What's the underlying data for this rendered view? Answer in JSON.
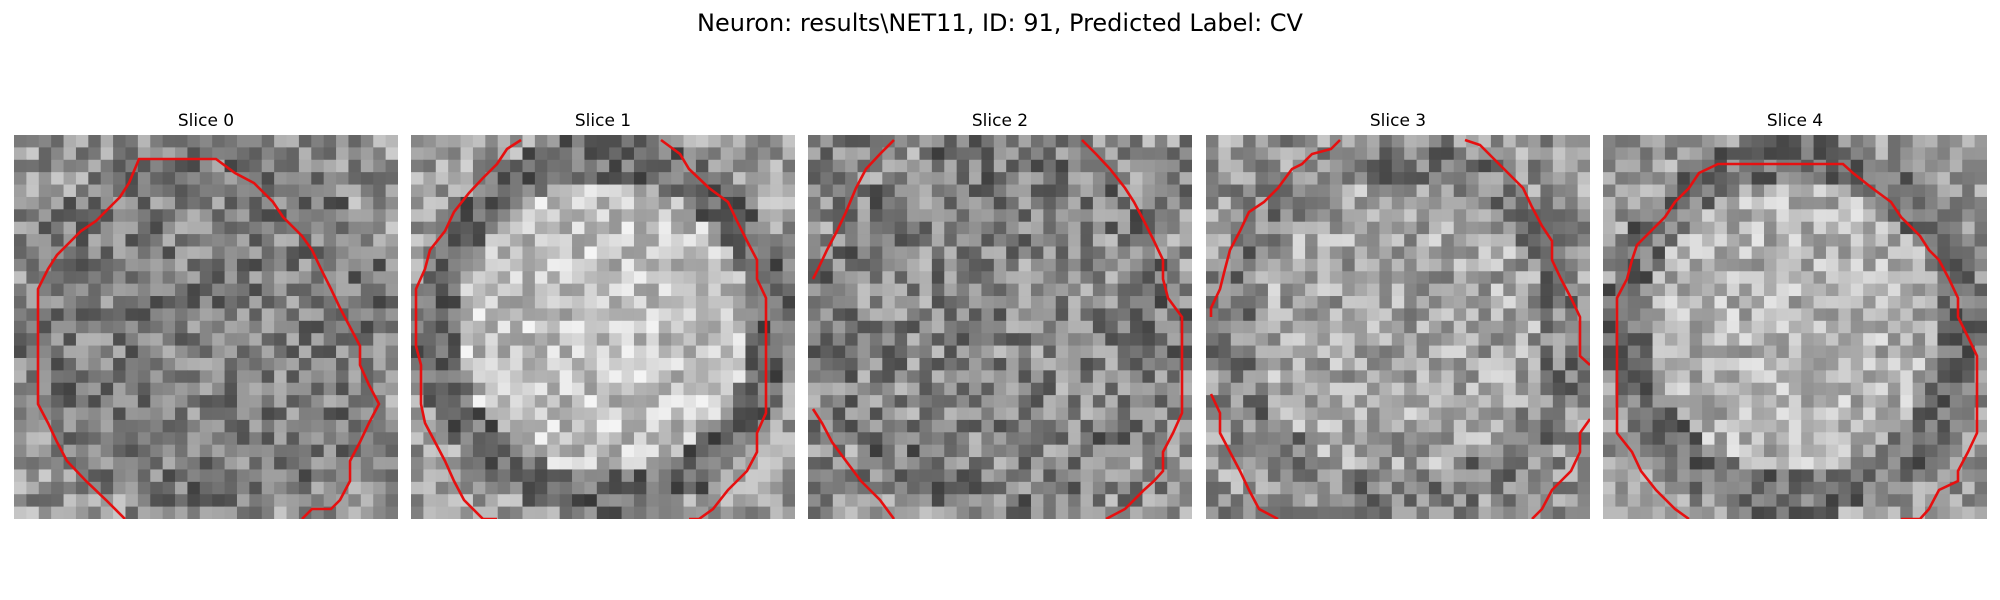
{
  "figure": {
    "title": "Neuron: results\\NET11, ID: 91, Predicted Label: CV"
  },
  "colors": {
    "contour": "#e61010",
    "background": "#ffffff"
  },
  "slices": [
    {
      "label": "Slice 0"
    },
    {
      "label": "Slice 1"
    },
    {
      "label": "Slice 2"
    },
    {
      "label": "Slice 3"
    },
    {
      "label": "Slice 4"
    }
  ]
}
